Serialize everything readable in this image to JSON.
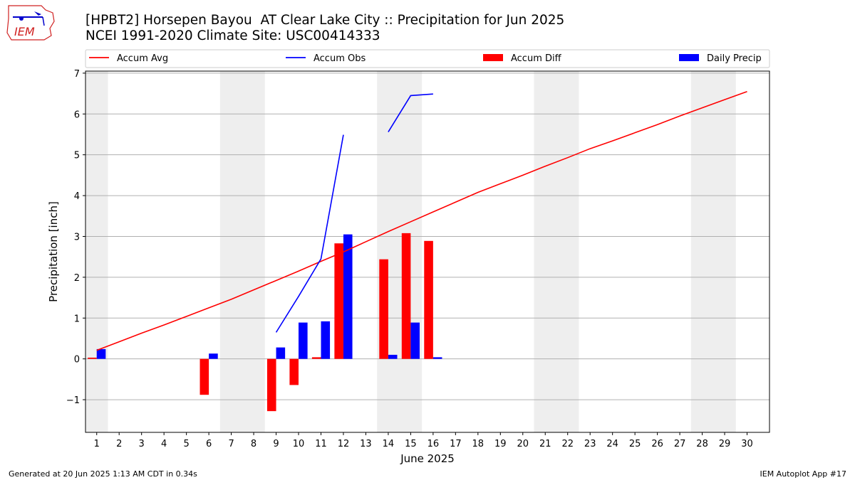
{
  "chart_data": {
    "type": "bar",
    "title": "[HPBT2] Horsepen Bayou  AT Clear Lake City :: Precipitation for Jun 2025",
    "subtitle": "NCEI 1991-2020 Climate Site: USC00414333",
    "xlabel": "June 2025",
    "ylabel": "Precipitation [inch]",
    "xlim": [
      0.5,
      31.0
    ],
    "ylim": [
      -1.8,
      7.05
    ],
    "yticks": [
      -1,
      0,
      1,
      2,
      3,
      4,
      5,
      6,
      7
    ],
    "x_ticks": [
      1,
      2,
      3,
      4,
      5,
      6,
      7,
      8,
      9,
      10,
      11,
      12,
      13,
      14,
      15,
      16,
      17,
      18,
      19,
      20,
      21,
      22,
      23,
      24,
      25,
      26,
      27,
      28,
      29,
      30
    ],
    "grid": "horizontal",
    "legend_position": "top",
    "weekend_bands": [
      [
        0.5,
        1.5
      ],
      [
        6.5,
        8.5
      ],
      [
        13.5,
        15.5
      ],
      [
        20.5,
        22.5
      ],
      [
        27.5,
        29.5
      ]
    ],
    "series": [
      {
        "name": "Accum Avg",
        "kind": "line",
        "color": "#ff0000",
        "x": [
          1,
          2,
          3,
          4,
          5,
          6,
          7,
          8,
          9,
          10,
          11,
          12,
          13,
          14,
          15,
          16,
          17,
          18,
          19,
          20,
          21,
          22,
          23,
          24,
          25,
          26,
          27,
          28,
          29,
          30
        ],
        "values": [
          0.21,
          0.42,
          0.63,
          0.83,
          1.04,
          1.25,
          1.46,
          1.69,
          1.92,
          2.15,
          2.39,
          2.62,
          2.87,
          3.12,
          3.36,
          3.6,
          3.84,
          4.08,
          4.29,
          4.5,
          4.72,
          4.93,
          5.15,
          5.34,
          5.54,
          5.74,
          5.95,
          6.15,
          6.35,
          6.55
        ]
      },
      {
        "name": "Accum Obs",
        "kind": "line",
        "color": "#0000ff",
        "segments": [
          {
            "x": [
              9,
              10,
              11,
              12
            ],
            "values": [
              0.65,
              1.53,
              2.45,
              5.49
            ]
          },
          {
            "x": [
              14,
              15,
              16
            ],
            "values": [
              5.56,
              6.45,
              6.49
            ]
          }
        ]
      },
      {
        "name": "Accum Diff",
        "kind": "bar",
        "color": "#ff0000",
        "x": [
          1,
          6,
          9,
          10,
          11,
          12,
          14,
          15,
          16
        ],
        "values": [
          0.03,
          -0.88,
          -1.28,
          -0.64,
          0.04,
          2.83,
          2.44,
          3.08,
          2.89
        ]
      },
      {
        "name": "Daily Precip",
        "kind": "bar",
        "color": "#0000ff",
        "x": [
          1,
          6,
          9,
          10,
          11,
          12,
          14,
          15,
          16
        ],
        "values": [
          0.24,
          0.13,
          0.28,
          0.89,
          0.92,
          3.05,
          0.1,
          0.89,
          0.04
        ]
      }
    ]
  },
  "footer": {
    "left": "Generated at 20 Jun 2025 1:13 AM CDT in 0.34s",
    "right": "IEM Autoplot App #17"
  },
  "logo": {
    "text": "IEM"
  }
}
